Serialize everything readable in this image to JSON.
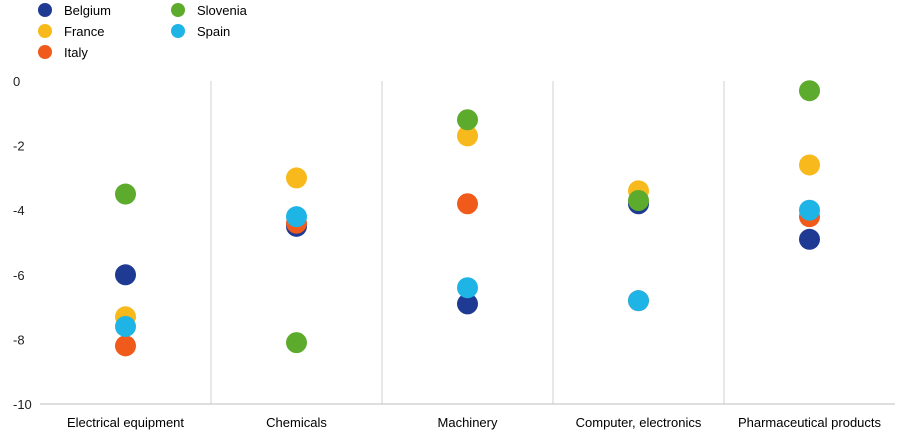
{
  "chart_data": {
    "type": "scatter",
    "title": "",
    "xlabel": "",
    "ylabel": "",
    "ylim": [
      -10,
      0
    ],
    "yticks": [
      0,
      -2,
      -4,
      -6,
      -8,
      -10
    ],
    "grid": "vertical separators between categories",
    "legend_position": "top-left",
    "categories": [
      "Electrical equipment",
      "Chemicals",
      "Machinery",
      "Computer, electronics",
      "Pharmaceutical products"
    ],
    "series": [
      {
        "name": "Belgium",
        "color": "#1f3a93",
        "values": [
          -6.0,
          -4.5,
          -6.9,
          -3.8,
          -4.9
        ]
      },
      {
        "name": "France",
        "color": "#f7b91c",
        "values": [
          -7.3,
          -3.0,
          -1.7,
          -3.4,
          -2.6
        ]
      },
      {
        "name": "Italy",
        "color": "#f05a1a",
        "values": [
          -8.2,
          -4.4,
          -3.8,
          -6.8,
          -4.2
        ]
      },
      {
        "name": "Slovenia",
        "color": "#5dab2d",
        "values": [
          -3.5,
          -8.1,
          -1.2,
          -3.7,
          -0.3
        ]
      },
      {
        "name": "Spain",
        "color": "#1fb4e6",
        "values": [
          -7.6,
          -4.2,
          -6.4,
          -6.8,
          -4.0
        ]
      }
    ]
  }
}
